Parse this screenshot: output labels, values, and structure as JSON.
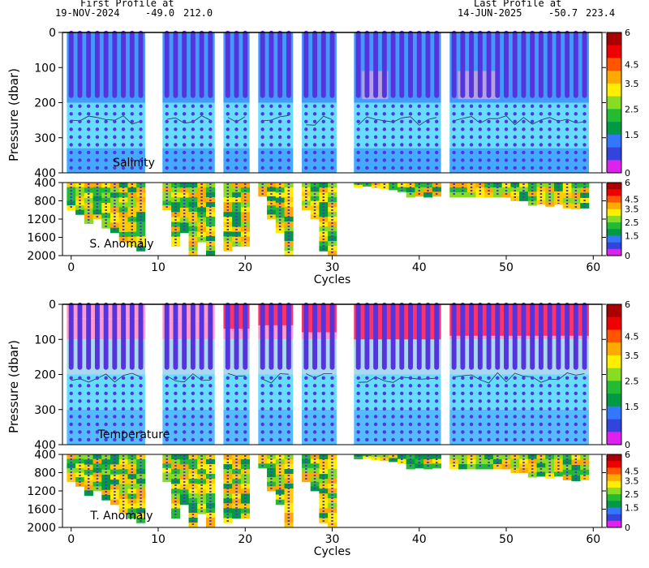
{
  "header": {
    "first_label": "First Profile at",
    "first_date": "19-NOV-2024",
    "first_lat": "-49.0",
    "first_lon": "212.0",
    "last_label": "Last Profile at",
    "last_date": "14-JUN-2025",
    "last_lat": "-50.7",
    "last_lon": "223.4"
  },
  "colors": {
    "levels": [
      "#dd22ee",
      "#3344dd",
      "#3377ff",
      "#009944",
      "#22bb33",
      "#88dd22",
      "#ffee00",
      "#ffaa00",
      "#ff5500",
      "#ee0000",
      "#aa0000"
    ],
    "salinity_fill": "#4499ff",
    "salinity_light": "#66ddff",
    "temp_deep": "#66ddff",
    "temp_mid": "#aad8ee",
    "temp_pink": "#ff99cc",
    "temp_red": "#ff3366",
    "dots": "#5533dd"
  },
  "chart_data": [
    {
      "type": "heatmap",
      "panel": "Salinity",
      "label": "Salinity",
      "ylabel": "Pressure (dbar)",
      "ylim": [
        400,
        0
      ],
      "yticks": [
        0,
        100,
        200,
        300,
        400
      ],
      "xlim": [
        -1,
        61
      ],
      "colorbar_ticks": [
        "6",
        "4.5",
        "3.5",
        "2.5",
        "1.5",
        "0"
      ]
    },
    {
      "type": "heatmap",
      "panel": "S. Anomaly",
      "label": "S. Anomaly",
      "ylim": [
        2000,
        400
      ],
      "yticks": [
        400,
        800,
        1200,
        1600,
        2000
      ],
      "xlim": [
        -1,
        61
      ],
      "xticks": [
        0,
        10,
        20,
        30,
        40,
        50,
        60
      ],
      "xlabel": "Cycles",
      "colorbar_ticks": [
        "6",
        "4.5",
        "3.5",
        "2.5",
        "1.5",
        "0"
      ]
    },
    {
      "type": "heatmap",
      "panel": "Temperature",
      "label": "Temperature",
      "ylabel": "Pressure (dbar)",
      "ylim": [
        400,
        0
      ],
      "yticks": [
        0,
        100,
        200,
        300,
        400
      ],
      "xlim": [
        -1,
        61
      ],
      "colorbar_ticks": [
        "6",
        "4.5",
        "3.5",
        "2.5",
        "1.5",
        "0"
      ]
    },
    {
      "type": "heatmap",
      "panel": "T. Anomaly",
      "label": "T. Anomaly",
      "ylim": [
        2000,
        400
      ],
      "yticks": [
        400,
        800,
        1200,
        1600,
        2000
      ],
      "xlim": [
        -1,
        61
      ],
      "xticks": [
        0,
        10,
        20,
        30,
        40,
        50,
        60
      ],
      "xlabel": "Cycles",
      "colorbar_ticks": [
        "6",
        "4.5",
        "3.5",
        "2.5",
        "1.5",
        "0"
      ]
    }
  ],
  "profiles": {
    "cycle_groups": [
      [
        0,
        8
      ],
      [
        11,
        16
      ],
      [
        18,
        20
      ],
      [
        22,
        25
      ],
      [
        27,
        30
      ],
      [
        33,
        42
      ],
      [
        44,
        59
      ]
    ],
    "shallow_depth": 180,
    "shallow_groups": [
      {
        "cycles": [
          0,
          8
        ],
        "max_depth": [
          1000,
          1100,
          1300,
          1200,
          1400,
          1500,
          1700,
          1800,
          1900
        ]
      },
      {
        "cycles": [
          11,
          16
        ],
        "max_depth": [
          1000,
          1800,
          1500,
          2000,
          1700,
          2000
        ]
      },
      {
        "cycles": [
          18,
          20
        ],
        "max_depth": [
          1900,
          1800,
          1800
        ]
      },
      {
        "cycles": [
          22,
          25
        ],
        "max_depth": [
          700,
          1200,
          1500,
          2000
        ]
      },
      {
        "cycles": [
          27,
          30
        ],
        "max_depth": [
          1000,
          1200,
          1900,
          2000
        ]
      },
      {
        "cycles": [
          33,
          42
        ],
        "max_depth": [
          500,
          480,
          520,
          540,
          560,
          600,
          720,
          700,
          720,
          700
        ]
      },
      {
        "cycles": [
          44,
          59
        ],
        "max_depth": [
          720,
          720,
          720,
          720,
          720,
          720,
          720,
          800,
          800,
          900,
          880,
          920,
          880,
          960,
          980,
          960
        ]
      }
    ]
  }
}
